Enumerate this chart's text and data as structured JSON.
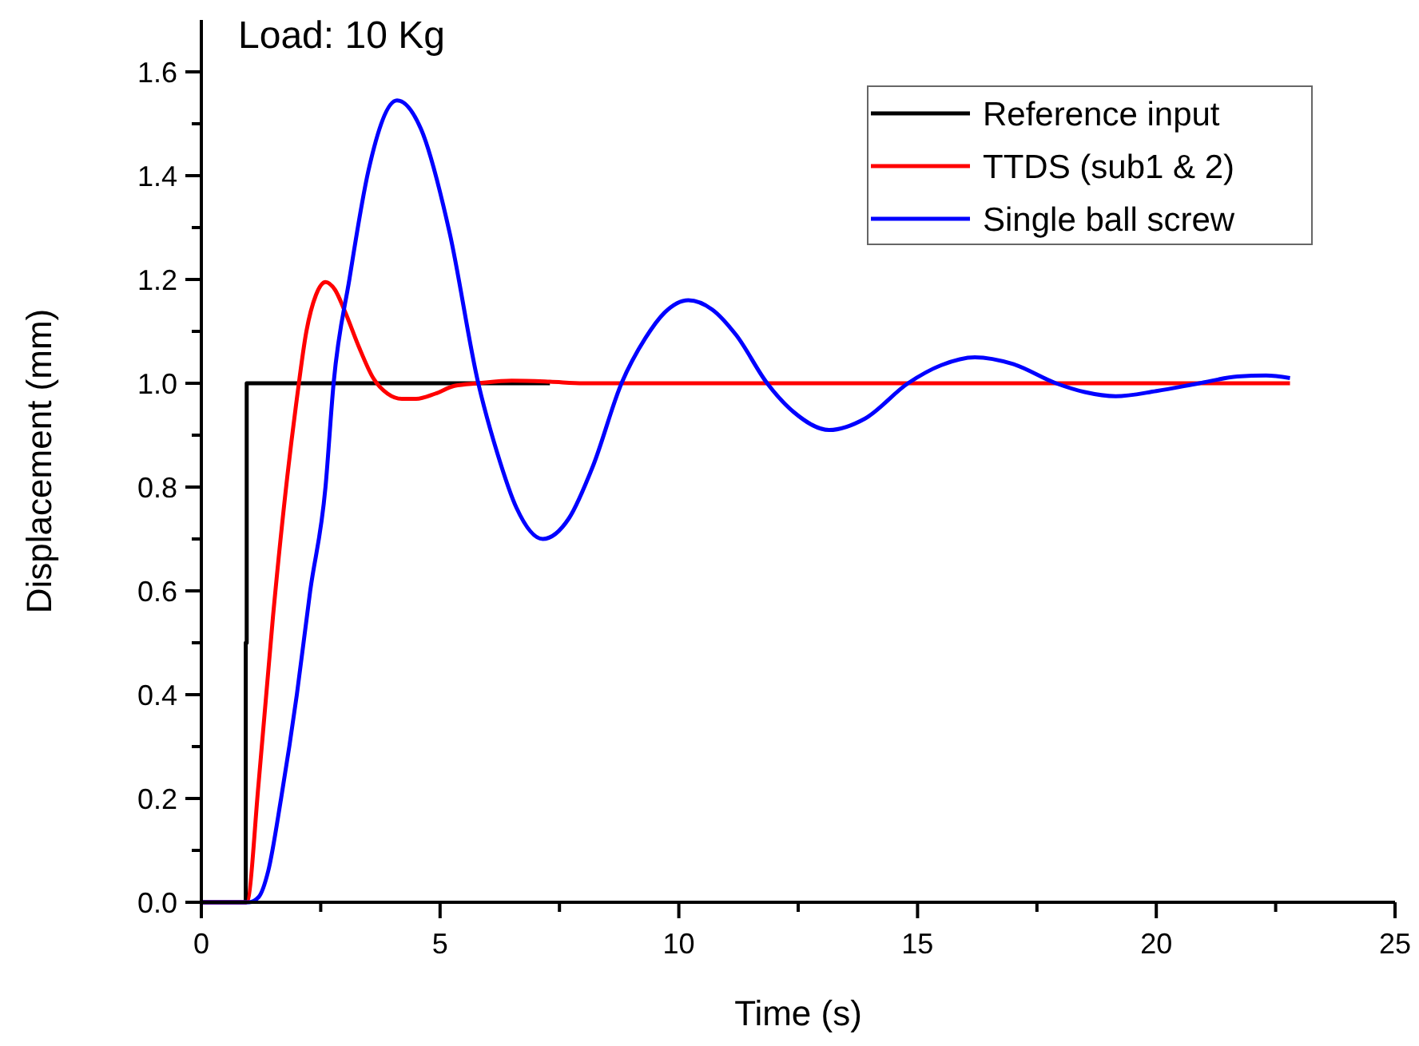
{
  "chart_data": {
    "type": "line",
    "title": "Load: 10 Kg",
    "xlabel": "Time (s)",
    "ylabel": "Displacement (mm)",
    "xlim": [
      0,
      25
    ],
    "ylim": [
      0,
      1.7
    ],
    "xticks": [
      0,
      {
        "value": 2.5,
        "label": null
      },
      5,
      {
        "value": 7.5,
        "label": null
      },
      10,
      {
        "value": 12.5,
        "label": null
      },
      15,
      {
        "value": 17.5,
        "label": null
      },
      20,
      {
        "value": 22.5,
        "label": null
      },
      25
    ],
    "yticks": [
      "0.0",
      {
        "value": 0.1,
        "label": null
      },
      {
        "value": 0.2,
        "label": "0.2"
      },
      {
        "value": 0.3,
        "label": null
      },
      {
        "value": 0.4,
        "label": "0.4"
      },
      {
        "value": 0.5,
        "label": null
      },
      {
        "value": 0.6,
        "label": "0.6"
      },
      {
        "value": 0.7,
        "label": null
      },
      {
        "value": 0.8,
        "label": "0.8"
      },
      {
        "value": 0.9,
        "label": null
      },
      {
        "value": 1.0,
        "label": "1.0"
      },
      {
        "value": 1.1,
        "label": null
      },
      {
        "value": 1.2,
        "label": "1.2"
      },
      {
        "value": 1.3,
        "label": null
      },
      {
        "value": 1.4,
        "label": "1.4"
      },
      {
        "value": 1.5,
        "label": null
      },
      {
        "value": 1.6,
        "label": "1.6"
      }
    ],
    "grid": false,
    "legend": "top right",
    "marker": "none",
    "line_style": "solid",
    "series": [
      {
        "name": "Reference input",
        "color": "#000000",
        "x": [
          0,
          0.93,
          0.93,
          0.95,
          0.95,
          7.3
        ],
        "values": [
          0,
          0,
          0.5,
          0.5,
          1,
          1
        ]
      },
      {
        "name": "TTDS (sub1 & 2)",
        "color": "#ff0000",
        "x": [
          0,
          0.95,
          1.2,
          1.5,
          1.8,
          2.0,
          2.2,
          2.4,
          2.6,
          2.8,
          3.0,
          3.3,
          3.6,
          3.9,
          4.2,
          4.5,
          4.9,
          5.3,
          5.8,
          6.5,
          7.3,
          8,
          22.8
        ],
        "values": [
          0,
          0,
          0.23,
          0.55,
          0.82,
          0.97,
          1.1,
          1.17,
          1.195,
          1.18,
          1.14,
          1.07,
          1.01,
          0.98,
          0.97,
          0.97,
          0.98,
          0.995,
          1.0,
          1.005,
          1.003,
          1.0,
          1.0
        ]
      },
      {
        "name": "Single ball screw",
        "color": "#0000ff",
        "x": [
          0,
          1.0,
          1.2,
          1.4,
          1.67,
          2.0,
          2.28,
          2.6,
          2.77,
          3.1,
          3.5,
          4.1,
          4.6,
          5.2,
          5.8,
          6.2,
          6.6,
          7.15,
          7.7,
          8.2,
          8.8,
          9.3,
          9.7,
          10.2,
          10.7,
          11.2,
          11.85,
          12.4,
          13.15,
          13.9,
          14.8,
          15.5,
          16.2,
          17.0,
          17.9,
          18.5,
          19.15,
          20.0,
          20.9,
          21.7,
          22.3,
          22.8
        ],
        "values": [
          0,
          0,
          0.01,
          0.06,
          0.2,
          0.4,
          0.6,
          0.8,
          1.0,
          1.2,
          1.41,
          1.545,
          1.49,
          1.29,
          1.0,
          0.865,
          0.76,
          0.7,
          0.74,
          0.84,
          1.0,
          1.087,
          1.136,
          1.16,
          1.142,
          1.093,
          1.0,
          0.945,
          0.91,
          0.932,
          1.0,
          1.035,
          1.05,
          1.037,
          1.0,
          0.983,
          0.975,
          0.985,
          1.0,
          1.013,
          1.015,
          1.01
        ]
      }
    ]
  }
}
